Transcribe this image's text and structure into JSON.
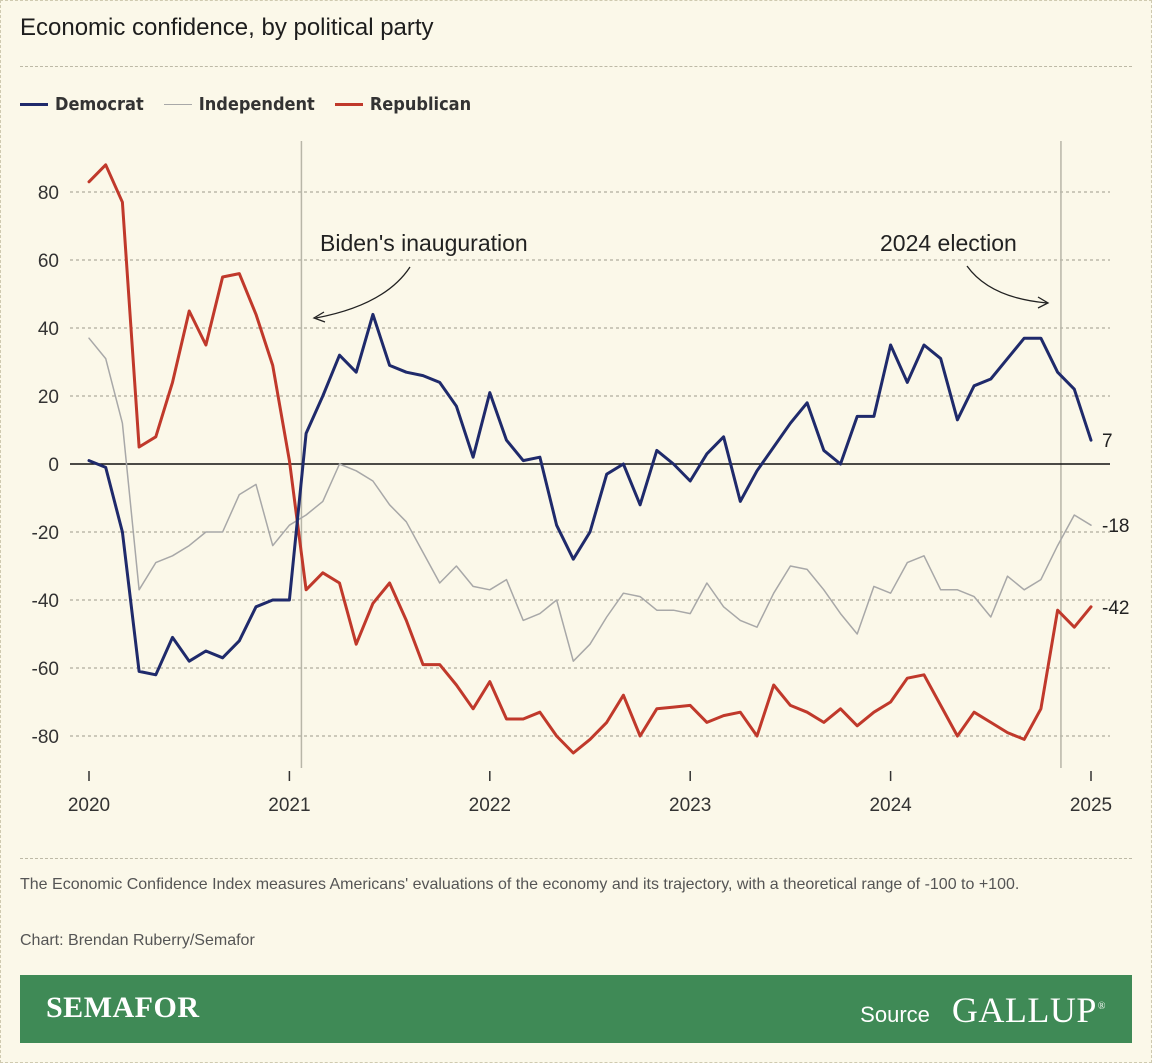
{
  "title": "Economic confidence, by political party",
  "legend": [
    {
      "label": "Democrat",
      "color": "#1f2a6b"
    },
    {
      "label": "Independent",
      "color": "#a8a8a8"
    },
    {
      "label": "Republican",
      "color": "#c0392b"
    }
  ],
  "chart_data": {
    "type": "line",
    "title": "Economic confidence, by political party",
    "xlabel": "",
    "ylabel": "",
    "x_start": 2020.0,
    "x_step": 0.0833333,
    "xlim": [
      2020,
      2025
    ],
    "ylim": [
      -90,
      95
    ],
    "x_ticks": [
      "2020",
      "2021",
      "2022",
      "2023",
      "2024",
      "2025"
    ],
    "y_ticks": [
      "80",
      "60",
      "40",
      "20",
      "0",
      "-20",
      "-40",
      "-60",
      "-80"
    ],
    "y_tick_values": [
      80,
      60,
      40,
      20,
      0,
      -20,
      -40,
      -60,
      -80
    ],
    "series": [
      {
        "name": "Democrat",
        "color": "#1f2a6b",
        "end_label": "7",
        "values": [
          1,
          -1,
          -20,
          -61,
          -62,
          -51,
          -58,
          -55,
          -57,
          -52,
          -42,
          -40,
          -40,
          9,
          20,
          32,
          27,
          44,
          29,
          27,
          26,
          24,
          17,
          2,
          21,
          7,
          1,
          2,
          -18,
          -28,
          -20,
          -3,
          0,
          -12,
          4,
          0,
          -5,
          3,
          8,
          -11,
          -2,
          5,
          12,
          18,
          4,
          0,
          14,
          14,
          35,
          24,
          35,
          31,
          13,
          23,
          25,
          31,
          37,
          37,
          27,
          22,
          7
        ]
      },
      {
        "name": "Independent",
        "color": "#a8a8a8",
        "end_label": "-18",
        "values": [
          37,
          31,
          12,
          -37,
          -29,
          -27,
          -24,
          -20,
          -20,
          -9,
          -6,
          -24,
          -18,
          -15,
          -11,
          0,
          -2,
          -5,
          -12,
          -17,
          -26,
          -35,
          -30,
          -36,
          -37,
          -34,
          -46,
          -44,
          -40,
          -58,
          -53,
          -45,
          -38,
          -39,
          -43,
          -43,
          -44,
          -35,
          -42,
          -46,
          -48,
          -38,
          -30,
          -31,
          -37,
          -44,
          -50,
          -36,
          -38,
          -29,
          -27,
          -37,
          -37,
          -39,
          -45,
          -33,
          -37,
          -34,
          -24,
          -15,
          -18
        ]
      },
      {
        "name": "Republican",
        "color": "#c0392b",
        "end_label": "-42",
        "values": [
          83,
          88,
          77,
          5,
          8,
          24,
          45,
          35,
          55,
          56,
          44,
          29,
          1,
          -37,
          -32,
          -35,
          -53,
          -41,
          -35,
          -46,
          -59,
          -59,
          -65,
          -72,
          -64,
          -75,
          -75,
          -73,
          -80,
          -85,
          -81,
          -76,
          -68,
          -80,
          -72,
          -71.5,
          -71,
          -76,
          -74,
          -73,
          -80,
          -65,
          -71,
          -73,
          -76,
          -72,
          -77,
          -73,
          -70,
          -63,
          -62,
          -71,
          -80,
          -73,
          -76,
          -79,
          -81,
          -72,
          -43,
          -48,
          -42
        ]
      }
    ],
    "annotations": [
      {
        "label": "Biden's inauguration",
        "x": 2021.06
      },
      {
        "label": "2024 election",
        "x": 2024.85
      }
    ]
  },
  "note": "The Economic Confidence Index measures Americans' evaluations of the economy and its trajectory, with a theoretical range of -100 to +100.",
  "credit": "Chart: Brendan Ruberry/Semafor",
  "footer": {
    "brand": "SEMAFOR",
    "source_label": "Source",
    "source_logo": "GALLUP",
    "source_mark": "®"
  }
}
